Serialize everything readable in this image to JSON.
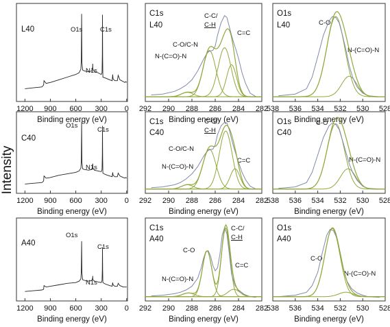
{
  "figure": {
    "ylabel": "Intensity"
  },
  "colors": {
    "envelope": "#7f8aa8",
    "fit": "#8fa83a",
    "survey": "#222222",
    "axis": "#333333"
  },
  "chart_data": [
    {
      "id": "surv_L40",
      "type": "line",
      "kind": "survey",
      "sample_label": "L40",
      "xlabel": "Binding energy (eV)",
      "xlim": [
        1300,
        -10
      ],
      "xticks": [
        "1200",
        "900",
        "600",
        "300",
        "0"
      ],
      "xtick_values": [
        1200,
        900,
        600,
        300,
        0
      ],
      "peaks": [
        {
          "label": "O1s",
          "x": 531
        },
        {
          "label": "C1s",
          "x": 285
        },
        {
          "label": "N1s",
          "x": 400
        }
      ],
      "series": [
        {
          "x": [
            1200,
            1100,
            1000,
            980,
            975,
            950,
            900,
            800,
            700,
            600,
            560,
            540,
            535,
            531,
            528,
            520,
            500,
            450,
            410,
            402,
            400,
            398,
            380,
            340,
            300,
            290,
            287,
            285,
            283,
            280,
            250,
            200,
            170,
            165,
            160,
            140,
            110,
            100,
            80,
            60,
            40,
            20,
            10,
            0
          ],
          "y": [
            0.12,
            0.13,
            0.14,
            0.16,
            0.21,
            0.18,
            0.19,
            0.22,
            0.25,
            0.28,
            0.3,
            0.34,
            0.45,
            0.96,
            0.42,
            0.33,
            0.32,
            0.31,
            0.32,
            0.36,
            0.4,
            0.34,
            0.31,
            0.3,
            0.28,
            0.3,
            0.5,
            0.95,
            0.45,
            0.25,
            0.24,
            0.22,
            0.21,
            0.28,
            0.23,
            0.21,
            0.21,
            0.27,
            0.22,
            0.21,
            0.2,
            0.19,
            0.2,
            0.19
          ]
        }
      ]
    },
    {
      "id": "c1s_L40",
      "type": "line",
      "kind": "fit",
      "title": "C1s",
      "sample_label": "L40",
      "xlabel": "Binding energy (eV)",
      "xlim": [
        292,
        282
      ],
      "xticks": [
        "292",
        "290",
        "288",
        "286",
        "284",
        "282"
      ],
      "xtick_values": [
        292,
        290,
        288,
        286,
        284,
        282
      ],
      "envelope": {
        "x": [
          291.5,
          290.5,
          289.5,
          289,
          288.5,
          288,
          287.5,
          287,
          286.7,
          286.5,
          286.2,
          286,
          285.8,
          285.5,
          285.2,
          285,
          284.8,
          284.6,
          284.4,
          284.2,
          284,
          283.7,
          283.4,
          283,
          282.5
        ],
        "y": [
          0.05,
          0.06,
          0.09,
          0.12,
          0.16,
          0.22,
          0.32,
          0.45,
          0.52,
          0.54,
          0.55,
          0.6,
          0.72,
          0.86,
          0.94,
          0.92,
          0.82,
          0.72,
          0.63,
          0.55,
          0.46,
          0.3,
          0.18,
          0.07,
          0.03
        ]
      },
      "components": [
        {
          "label": "C-O/C-N",
          "center": 286.5,
          "height": 0.52,
          "fwhm": 1.3
        },
        {
          "label": "C-C/ C-H",
          "center": 285.2,
          "height": 0.55,
          "fwhm": 1.3
        },
        {
          "label": "C=C",
          "center": 284.6,
          "height": 0.36,
          "fwhm": 1.0
        },
        {
          "label": "N-(C=O)-N",
          "center": 288.4,
          "height": 0.05,
          "fwhm": 1.2
        }
      ],
      "labels": [
        "C-C/",
        "C-H",
        "C-O/C-N",
        "C=C",
        "N-(C=O)-N"
      ]
    },
    {
      "id": "o1s_L40",
      "type": "line",
      "kind": "fit",
      "title": "O1s",
      "sample_label": "L40",
      "xlabel": "Binding energy (eV)",
      "xlim": [
        538,
        528
      ],
      "xticks": [
        "538",
        "536",
        "534",
        "532",
        "530",
        "528"
      ],
      "xtick_values": [
        538,
        536,
        534,
        532,
        530,
        528
      ],
      "envelope": {
        "x": [
          537.5,
          536,
          535,
          534.5,
          534,
          533.5,
          533,
          532.7,
          532.4,
          532.1,
          531.8,
          531.5,
          531.2,
          530.9,
          530.5,
          530,
          529.5,
          528.5
        ],
        "y": [
          0.04,
          0.06,
          0.12,
          0.25,
          0.48,
          0.72,
          0.88,
          0.93,
          0.92,
          0.86,
          0.72,
          0.56,
          0.38,
          0.25,
          0.14,
          0.07,
          0.04,
          0.03
        ]
      },
      "components": [
        {
          "label": "C-O",
          "center": 532.4,
          "height": 0.9,
          "fwhm": 1.9
        },
        {
          "label": "N-(C=O)-N",
          "center": 531.2,
          "height": 0.23,
          "fwhm": 1.6
        }
      ],
      "labels": [
        "C-O",
        "N-(C=O)-N"
      ]
    },
    {
      "id": "surv_C40",
      "type": "line",
      "kind": "survey",
      "sample_label": "C40",
      "xlabel": "Binding energy (eV)",
      "xlim": [
        1300,
        -10
      ],
      "xticks": [
        "1200",
        "900",
        "600",
        "300",
        "0"
      ],
      "xtick_values": [
        1200,
        900,
        600,
        300,
        0
      ],
      "peaks": [
        {
          "label": "O1s",
          "x": 531
        },
        {
          "label": "C1s",
          "x": 285
        },
        {
          "label": "N1s",
          "x": 400
        }
      ],
      "series": [
        {
          "x": [
            1200,
            1100,
            1000,
            980,
            975,
            950,
            900,
            800,
            700,
            600,
            560,
            540,
            535,
            531,
            528,
            520,
            500,
            450,
            410,
            402,
            400,
            398,
            380,
            340,
            300,
            290,
            287,
            285,
            283,
            280,
            250,
            200,
            170,
            165,
            160,
            140,
            110,
            100,
            80,
            60,
            40,
            20,
            10,
            0
          ],
          "y": [
            0.1,
            0.11,
            0.12,
            0.14,
            0.21,
            0.18,
            0.19,
            0.22,
            0.24,
            0.26,
            0.28,
            0.32,
            0.42,
            0.96,
            0.4,
            0.31,
            0.3,
            0.29,
            0.3,
            0.34,
            0.38,
            0.32,
            0.29,
            0.28,
            0.27,
            0.3,
            0.5,
            0.9,
            0.45,
            0.25,
            0.23,
            0.21,
            0.2,
            0.26,
            0.22,
            0.2,
            0.2,
            0.25,
            0.21,
            0.2,
            0.19,
            0.18,
            0.19,
            0.18
          ]
        }
      ]
    },
    {
      "id": "c1s_C40",
      "type": "line",
      "kind": "fit",
      "title": "C1s",
      "sample_label": "C40",
      "xlabel": "Binding energy (eV)",
      "xlim": [
        292,
        282
      ],
      "xticks": [
        "292",
        "290",
        "288",
        "286",
        "284",
        "282"
      ],
      "xtick_values": [
        292,
        290,
        288,
        286,
        284,
        282
      ],
      "envelope": {
        "x": [
          291.5,
          290.5,
          289.5,
          289,
          288.5,
          288,
          287.5,
          287,
          286.7,
          286.5,
          286.2,
          286,
          285.8,
          285.5,
          285.2,
          285,
          284.8,
          284.6,
          284.4,
          284.2,
          284,
          283.7,
          283.4,
          283,
          282.5
        ],
        "y": [
          0.05,
          0.06,
          0.09,
          0.12,
          0.17,
          0.24,
          0.34,
          0.48,
          0.55,
          0.57,
          0.58,
          0.64,
          0.78,
          0.9,
          0.95,
          0.94,
          0.85,
          0.72,
          0.6,
          0.5,
          0.4,
          0.26,
          0.16,
          0.07,
          0.03
        ]
      },
      "components": [
        {
          "label": "C-O/C-N",
          "center": 286.5,
          "height": 0.55,
          "fwhm": 1.35
        },
        {
          "label": "C-C/ C-H",
          "center": 285.1,
          "height": 0.8,
          "fwhm": 1.3
        },
        {
          "label": "C=C",
          "center": 284.3,
          "height": 0.28,
          "fwhm": 1.0
        },
        {
          "label": "N-(C=O)-N",
          "center": 288.4,
          "height": 0.06,
          "fwhm": 1.2
        }
      ],
      "labels": [
        "C-C/",
        "C-H",
        "C-O/C-N",
        "C=C",
        "N-(C=O)-N"
      ]
    },
    {
      "id": "o1s_C40",
      "type": "line",
      "kind": "fit",
      "title": "O1s",
      "sample_label": "C40",
      "xlabel": "Binding energy (eV)",
      "xlim": [
        538,
        528
      ],
      "xticks": [
        "538",
        "536",
        "534",
        "532",
        "530",
        "528"
      ],
      "xtick_values": [
        538,
        536,
        534,
        532,
        530,
        528
      ],
      "envelope": {
        "x": [
          537.5,
          536,
          535,
          534.5,
          534,
          533.5,
          533,
          532.7,
          532.4,
          532.1,
          531.8,
          531.5,
          531.2,
          530.9,
          530.5,
          530,
          529.5,
          528.5
        ],
        "y": [
          0.04,
          0.06,
          0.12,
          0.26,
          0.5,
          0.74,
          0.9,
          0.94,
          0.92,
          0.85,
          0.7,
          0.54,
          0.38,
          0.26,
          0.15,
          0.07,
          0.04,
          0.03
        ]
      },
      "components": [
        {
          "label": "C-O",
          "center": 532.4,
          "height": 0.9,
          "fwhm": 1.8
        },
        {
          "label": "N-(C=O)-N",
          "center": 531.3,
          "height": 0.28,
          "fwhm": 1.6
        }
      ],
      "labels": [
        "C-O",
        "N-(C=O)-N"
      ]
    },
    {
      "id": "surv_A40",
      "type": "line",
      "kind": "survey",
      "sample_label": "A40",
      "xlabel": "Binding energy (eV)",
      "xlim": [
        1300,
        -10
      ],
      "xticks": [
        "1200",
        "900",
        "600",
        "300",
        "0"
      ],
      "xtick_values": [
        1200,
        900,
        600,
        300,
        0
      ],
      "peaks": [
        {
          "label": "O1s",
          "x": 531
        },
        {
          "label": "C1s",
          "x": 285
        },
        {
          "label": "N1s",
          "x": 400
        }
      ],
      "series": [
        {
          "x": [
            1200,
            1100,
            1000,
            980,
            975,
            950,
            900,
            800,
            700,
            600,
            560,
            540,
            535,
            531,
            528,
            520,
            500,
            450,
            410,
            402,
            400,
            398,
            380,
            340,
            300,
            290,
            287,
            285,
            283,
            280,
            250,
            200,
            170,
            165,
            160,
            140,
            110,
            100,
            80,
            60,
            40,
            20,
            10,
            0
          ],
          "y": [
            0.1,
            0.11,
            0.12,
            0.13,
            0.18,
            0.16,
            0.17,
            0.19,
            0.21,
            0.22,
            0.24,
            0.27,
            0.38,
            0.78,
            0.36,
            0.26,
            0.25,
            0.24,
            0.25,
            0.28,
            0.31,
            0.26,
            0.24,
            0.23,
            0.22,
            0.25,
            0.4,
            0.7,
            0.38,
            0.22,
            0.2,
            0.18,
            0.17,
            0.22,
            0.19,
            0.17,
            0.17,
            0.21,
            0.18,
            0.17,
            0.16,
            0.16,
            0.16,
            0.16
          ]
        }
      ]
    },
    {
      "id": "c1s_A40",
      "type": "line",
      "kind": "fit",
      "title": "C1s",
      "sample_label": "A40",
      "xlabel": "Binding energy (eV)",
      "xlim": [
        292,
        282
      ],
      "xticks": [
        "292",
        "290",
        "288",
        "286",
        "284",
        "282"
      ],
      "xtick_values": [
        292,
        290,
        288,
        286,
        284,
        282
      ],
      "envelope": {
        "x": [
          291.5,
          290.5,
          289.5,
          289,
          288.5,
          288,
          287.5,
          287.2,
          287,
          286.8,
          286.6,
          286.4,
          286.2,
          286,
          285.8,
          285.6,
          285.4,
          285.2,
          285,
          284.8,
          284.6,
          284.3,
          284,
          283.5,
          283,
          282.5
        ],
        "y": [
          0.04,
          0.05,
          0.07,
          0.09,
          0.12,
          0.17,
          0.28,
          0.42,
          0.55,
          0.64,
          0.65,
          0.58,
          0.45,
          0.38,
          0.42,
          0.6,
          0.86,
          0.96,
          0.88,
          0.62,
          0.34,
          0.18,
          0.12,
          0.06,
          0.03,
          0.02
        ]
      },
      "components": [
        {
          "label": "C-O",
          "center": 286.7,
          "height": 0.62,
          "fwhm": 0.95
        },
        {
          "label": "C-C/ C-H",
          "center": 285.1,
          "height": 0.93,
          "fwhm": 0.85
        },
        {
          "label": "C=C",
          "center": 284.4,
          "height": 0.1,
          "fwhm": 1.2
        },
        {
          "label": "N-(C=O)-N",
          "center": 288.3,
          "height": 0.05,
          "fwhm": 1.2
        }
      ],
      "labels": [
        "C-C/",
        "C-H",
        "C-O",
        "C=C",
        "N-(C=O)-N"
      ]
    },
    {
      "id": "o1s_A40",
      "type": "line",
      "kind": "fit",
      "title": "O1s",
      "sample_label": "A40",
      "xlabel": "Binding energy (eV)",
      "xlim": [
        538,
        528
      ],
      "xticks": [
        "538",
        "536",
        "534",
        "532",
        "530",
        "528"
      ],
      "xtick_values": [
        538,
        536,
        534,
        532,
        530,
        528
      ],
      "envelope": {
        "x": [
          537.5,
          536,
          535,
          534.5,
          534,
          533.6,
          533.2,
          532.9,
          532.6,
          532.3,
          532,
          531.7,
          531.4,
          531,
          530.5,
          530,
          529.5,
          528.5
        ],
        "y": [
          0.03,
          0.05,
          0.09,
          0.18,
          0.36,
          0.62,
          0.86,
          0.94,
          0.92,
          0.82,
          0.62,
          0.4,
          0.24,
          0.14,
          0.08,
          0.05,
          0.03,
          0.02
        ]
      },
      "components": [
        {
          "label": "C-O",
          "center": 532.7,
          "height": 0.92,
          "fwhm": 1.6
        },
        {
          "label": "N-(C=O)-N",
          "center": 531.5,
          "height": 0.06,
          "fwhm": 1.5
        }
      ],
      "labels": [
        "C-O",
        "N-(C=O)-N"
      ]
    }
  ]
}
